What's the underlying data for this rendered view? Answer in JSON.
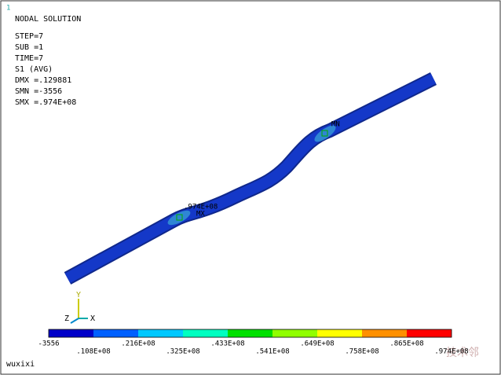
{
  "window_number": "1",
  "info": {
    "title": "NODAL SOLUTION",
    "lines": [
      "STEP=7",
      "SUB =1",
      "TIME=7",
      "S1       (AVG)",
      "DMX =.129881",
      "SMN =-3556",
      "SMX =.974E+08"
    ]
  },
  "model_labels": [
    ".974E+08",
    "MX",
    "MN"
  ],
  "triad": {
    "y": "Y",
    "z": "Z",
    "x": "X"
  },
  "legend": {
    "colors": [
      "#0000c8",
      "#0060ff",
      "#00c8ff",
      "#00ffc0",
      "#00e000",
      "#90ff00",
      "#ffff00",
      "#ff9000",
      "#ff0000"
    ],
    "labels": [
      "-3556",
      ".108E+08",
      ".216E+08",
      ".325E+08",
      ".433E+08",
      ".541E+08",
      ".649E+08",
      ".758E+08",
      ".865E+08",
      ".974E+08"
    ]
  },
  "footer": "wuxixi",
  "watermark": "技术邻"
}
